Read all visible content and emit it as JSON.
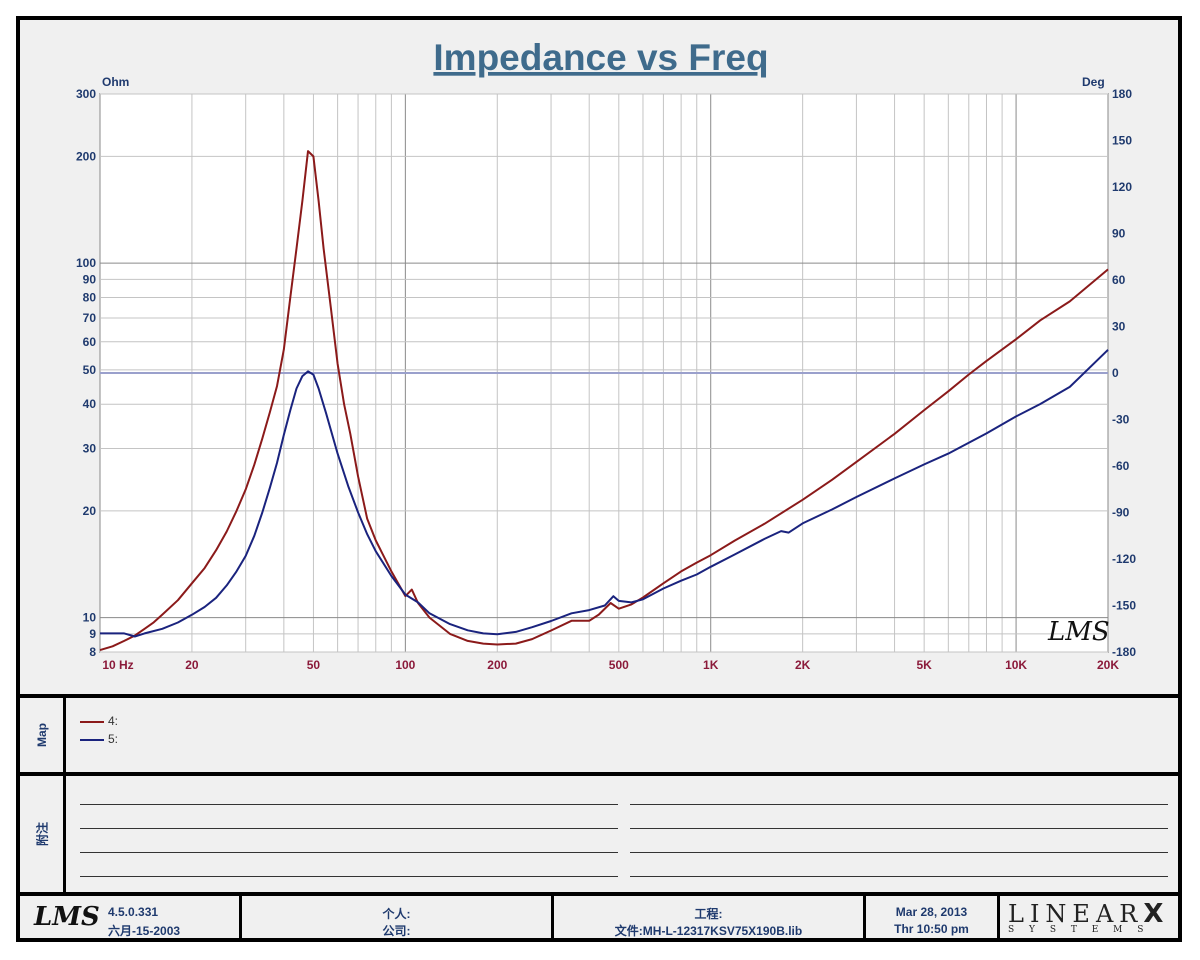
{
  "chart_data": {
    "type": "line",
    "title": "Impedance vs Freq",
    "y_left_label": "Ohm",
    "y_right_label": "Deg",
    "x_scale": "log",
    "y_left_scale": "log",
    "xlim": [
      10,
      20000
    ],
    "ylim_left": [
      8,
      300
    ],
    "ylim_right": [
      -180,
      180
    ],
    "x_tick_labels": [
      {
        "value": 10,
        "label": "10  Hz"
      },
      {
        "value": 20,
        "label": "20"
      },
      {
        "value": 50,
        "label": "50"
      },
      {
        "value": 100,
        "label": "100"
      },
      {
        "value": 200,
        "label": "200"
      },
      {
        "value": 500,
        "label": "500"
      },
      {
        "value": 1000,
        "label": "1K"
      },
      {
        "value": 2000,
        "label": "2K"
      },
      {
        "value": 5000,
        "label": "5K"
      },
      {
        "value": 10000,
        "label": "10K"
      },
      {
        "value": 20000,
        "label": "20K"
      }
    ],
    "y_left_tick_labels": [
      {
        "value": 300,
        "label": "300"
      },
      {
        "value": 200,
        "label": "200"
      },
      {
        "value": 100,
        "label": "100"
      },
      {
        "value": 90,
        "label": "90"
      },
      {
        "value": 80,
        "label": "80"
      },
      {
        "value": 70,
        "label": "70"
      },
      {
        "value": 60,
        "label": "60"
      },
      {
        "value": 50,
        "label": "50"
      },
      {
        "value": 40,
        "label": "40"
      },
      {
        "value": 30,
        "label": "30"
      },
      {
        "value": 20,
        "label": "20"
      },
      {
        "value": 10,
        "label": "10"
      },
      {
        "value": 9,
        "label": "9"
      },
      {
        "value": 8,
        "label": "8"
      }
    ],
    "y_right_tick_labels": [
      {
        "value": 180,
        "label": "180"
      },
      {
        "value": 150,
        "label": "150"
      },
      {
        "value": 120,
        "label": "120"
      },
      {
        "value": 90,
        "label": "90"
      },
      {
        "value": 60,
        "label": "60"
      },
      {
        "value": 30,
        "label": "30"
      },
      {
        "value": 0,
        "label": "0"
      },
      {
        "value": -30,
        "label": "-30"
      },
      {
        "value": -60,
        "label": "-60"
      },
      {
        "value": -90,
        "label": "-90"
      },
      {
        "value": -120,
        "label": "-120"
      },
      {
        "value": -150,
        "label": "-150"
      },
      {
        "value": -180,
        "label": "-180"
      }
    ],
    "reference_line_right": 0,
    "grid": true,
    "series": [
      {
        "name": "4:",
        "color": "#8b1a1a",
        "points": [
          [
            10,
            8.1
          ],
          [
            11,
            8.3
          ],
          [
            12,
            8.6
          ],
          [
            13,
            8.9
          ],
          [
            14,
            9.3
          ],
          [
            15,
            9.7
          ],
          [
            16,
            10.2
          ],
          [
            18,
            11.2
          ],
          [
            20,
            12.5
          ],
          [
            22,
            13.8
          ],
          [
            24,
            15.5
          ],
          [
            26,
            17.5
          ],
          [
            28,
            20.0
          ],
          [
            30,
            23.0
          ],
          [
            32,
            27.0
          ],
          [
            34,
            32.0
          ],
          [
            36,
            38.0
          ],
          [
            38,
            45.0
          ],
          [
            40,
            57.0
          ],
          [
            42,
            80.0
          ],
          [
            44,
            110.0
          ],
          [
            46,
            150.0
          ],
          [
            48,
            207.0
          ],
          [
            50,
            200.0
          ],
          [
            52,
            150.0
          ],
          [
            54,
            110.0
          ],
          [
            57,
            75.0
          ],
          [
            60,
            52.0
          ],
          [
            63,
            40.0
          ],
          [
            66,
            33.0
          ],
          [
            70,
            25.0
          ],
          [
            75,
            19.0
          ],
          [
            80,
            16.5
          ],
          [
            90,
            13.5
          ],
          [
            100,
            11.5
          ],
          [
            105,
            12.0
          ],
          [
            110,
            11.0
          ],
          [
            120,
            10.0
          ],
          [
            140,
            9.0
          ],
          [
            160,
            8.6
          ],
          [
            180,
            8.45
          ],
          [
            200,
            8.4
          ],
          [
            230,
            8.45
          ],
          [
            260,
            8.7
          ],
          [
            300,
            9.2
          ],
          [
            350,
            9.8
          ],
          [
            400,
            9.8
          ],
          [
            430,
            10.2
          ],
          [
            470,
            11.0
          ],
          [
            500,
            10.6
          ],
          [
            550,
            10.9
          ],
          [
            600,
            11.4
          ],
          [
            700,
            12.5
          ],
          [
            800,
            13.5
          ],
          [
            900,
            14.3
          ],
          [
            1000,
            15.0
          ],
          [
            1200,
            16.5
          ],
          [
            1500,
            18.4
          ],
          [
            2000,
            21.5
          ],
          [
            2500,
            24.5
          ],
          [
            3000,
            27.5
          ],
          [
            4000,
            33.0
          ],
          [
            5000,
            38.5
          ],
          [
            6000,
            43.5
          ],
          [
            7000,
            48.5
          ],
          [
            8000,
            53.0
          ],
          [
            10000,
            61.0
          ],
          [
            12000,
            69.0
          ],
          [
            15000,
            78.0
          ],
          [
            20000,
            96.0
          ]
        ]
      },
      {
        "name": "5:",
        "color": "#1a237e",
        "points": [
          [
            10,
            -168
          ],
          [
            12,
            -168
          ],
          [
            13,
            -170
          ],
          [
            14,
            -168
          ],
          [
            16,
            -165
          ],
          [
            18,
            -161
          ],
          [
            20,
            -156
          ],
          [
            22,
            -151
          ],
          [
            24,
            -145
          ],
          [
            26,
            -137
          ],
          [
            28,
            -128
          ],
          [
            30,
            -118
          ],
          [
            32,
            -105
          ],
          [
            34,
            -90
          ],
          [
            36,
            -74
          ],
          [
            38,
            -58
          ],
          [
            40,
            -40
          ],
          [
            42,
            -24
          ],
          [
            44,
            -10
          ],
          [
            46,
            -2
          ],
          [
            48,
            1
          ],
          [
            50,
            -1
          ],
          [
            52,
            -10
          ],
          [
            55,
            -26
          ],
          [
            60,
            -52
          ],
          [
            65,
            -73
          ],
          [
            70,
            -90
          ],
          [
            75,
            -104
          ],
          [
            80,
            -115
          ],
          [
            90,
            -131
          ],
          [
            100,
            -143
          ],
          [
            110,
            -148
          ],
          [
            120,
            -155
          ],
          [
            140,
            -162
          ],
          [
            160,
            -166
          ],
          [
            180,
            -168
          ],
          [
            200,
            -168.5
          ],
          [
            230,
            -167
          ],
          [
            260,
            -164
          ],
          [
            300,
            -160
          ],
          [
            350,
            -155
          ],
          [
            400,
            -153
          ],
          [
            450,
            -150
          ],
          [
            480,
            -144
          ],
          [
            500,
            -147
          ],
          [
            550,
            -148
          ],
          [
            600,
            -146
          ],
          [
            700,
            -139
          ],
          [
            800,
            -134
          ],
          [
            900,
            -130
          ],
          [
            1000,
            -125
          ],
          [
            1200,
            -117
          ],
          [
            1500,
            -107
          ],
          [
            1700,
            -102
          ],
          [
            1800,
            -103
          ],
          [
            2000,
            -97
          ],
          [
            2500,
            -88
          ],
          [
            3000,
            -80
          ],
          [
            4000,
            -68
          ],
          [
            5000,
            -59
          ],
          [
            6000,
            -52
          ],
          [
            7000,
            -45
          ],
          [
            8000,
            -39
          ],
          [
            10000,
            -28
          ],
          [
            12000,
            -20
          ],
          [
            15000,
            -9
          ],
          [
            20000,
            15
          ]
        ]
      }
    ]
  },
  "map_label": "Map",
  "notes_label": "附注",
  "footer": {
    "version": "4.5.0.331",
    "date_cn": "六月-15-2003",
    "person_label": "个人:",
    "company_label": "公司:",
    "project_label": "工程:",
    "file_label": "文件:MH-L-12317KSV75X190B.lib",
    "date": "Mar 28, 2013",
    "time": "Thr 10:50 pm",
    "brand_top": "LINEAR",
    "brand_x": "X",
    "brand_bottom": "S  Y  S  T  E  M  S"
  },
  "watermark": "LMS",
  "colors": {
    "axis_text": "#1f3a6e",
    "x_tick_text": "#8b1a3a",
    "plot_bg": "#ffffff",
    "frame_bg": "#f0f0f0",
    "ref_line": "#9aa0cc"
  }
}
